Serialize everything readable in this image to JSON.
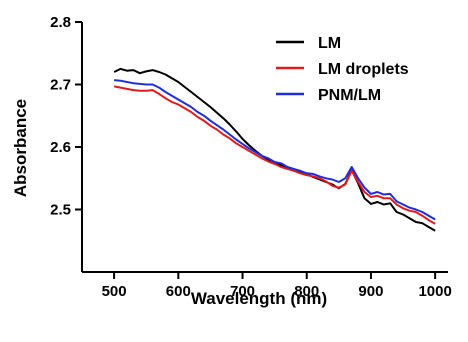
{
  "chart_data": {
    "type": "line",
    "xlabel": "Wavelength (nm)",
    "ylabel": "Absorbance",
    "xlim": [
      450,
      1020
    ],
    "ylim": [
      2.4,
      2.8
    ],
    "x_ticks": [
      500,
      600,
      700,
      800,
      900,
      1000
    ],
    "x_tick_labels": [
      "500",
      "600",
      "700",
      "800",
      "900",
      "1000"
    ],
    "y_ticks": [
      2.5,
      2.6,
      2.7,
      2.8
    ],
    "y_tick_labels": [
      "2.5",
      "2.6",
      "2.7",
      "2.8"
    ],
    "grid": false,
    "legend_position": "top-right",
    "series": [
      {
        "name": "LM",
        "color": "#000000",
        "x": [
          500,
          510,
          520,
          530,
          540,
          550,
          560,
          570,
          580,
          590,
          600,
          610,
          620,
          630,
          640,
          650,
          660,
          670,
          680,
          690,
          700,
          710,
          720,
          730,
          740,
          750,
          760,
          770,
          780,
          790,
          800,
          810,
          820,
          830,
          840,
          850,
          860,
          870,
          880,
          890,
          900,
          910,
          920,
          930,
          940,
          950,
          960,
          970,
          980,
          990,
          1000
        ],
        "values": [
          2.72,
          2.725,
          2.722,
          2.723,
          2.718,
          2.721,
          2.723,
          2.72,
          2.716,
          2.71,
          2.704,
          2.696,
          2.688,
          2.68,
          2.672,
          2.664,
          2.655,
          2.646,
          2.636,
          2.625,
          2.613,
          2.603,
          2.594,
          2.586,
          2.58,
          2.576,
          2.571,
          2.566,
          2.562,
          2.56,
          2.557,
          2.552,
          2.548,
          2.544,
          2.54,
          2.534,
          2.541,
          2.563,
          2.542,
          2.518,
          2.509,
          2.512,
          2.508,
          2.51,
          2.496,
          2.492,
          2.486,
          2.48,
          2.478,
          2.472,
          2.466
        ]
      },
      {
        "name": "LM droplets",
        "color": "#e31a1c",
        "x": [
          500,
          510,
          520,
          530,
          540,
          550,
          560,
          570,
          580,
          590,
          600,
          610,
          620,
          630,
          640,
          650,
          660,
          670,
          680,
          690,
          700,
          710,
          720,
          730,
          740,
          750,
          760,
          770,
          780,
          790,
          800,
          810,
          820,
          830,
          840,
          850,
          860,
          870,
          880,
          890,
          900,
          910,
          920,
          930,
          940,
          950,
          960,
          970,
          980,
          990,
          1000
        ],
        "values": [
          2.697,
          2.695,
          2.693,
          2.691,
          2.69,
          2.69,
          2.691,
          2.685,
          2.678,
          2.672,
          2.668,
          2.662,
          2.656,
          2.648,
          2.642,
          2.634,
          2.628,
          2.62,
          2.614,
          2.606,
          2.6,
          2.594,
          2.588,
          2.582,
          2.577,
          2.573,
          2.568,
          2.565,
          2.562,
          2.558,
          2.555,
          2.553,
          2.55,
          2.545,
          2.538,
          2.535,
          2.54,
          2.562,
          2.544,
          2.528,
          2.52,
          2.522,
          2.518,
          2.518,
          2.508,
          2.502,
          2.498,
          2.496,
          2.49,
          2.483,
          2.477
        ]
      },
      {
        "name": "PNM/LM",
        "color": "#1f2fd6",
        "x": [
          500,
          510,
          520,
          530,
          540,
          550,
          560,
          570,
          580,
          590,
          600,
          610,
          620,
          630,
          640,
          650,
          660,
          670,
          680,
          690,
          700,
          710,
          720,
          730,
          740,
          750,
          760,
          770,
          780,
          790,
          800,
          810,
          820,
          830,
          840,
          850,
          860,
          870,
          880,
          890,
          900,
          910,
          920,
          930,
          940,
          950,
          960,
          970,
          980,
          990,
          1000
        ],
        "values": [
          2.707,
          2.706,
          2.704,
          2.702,
          2.701,
          2.7,
          2.7,
          2.695,
          2.688,
          2.682,
          2.676,
          2.67,
          2.664,
          2.656,
          2.65,
          2.642,
          2.635,
          2.628,
          2.62,
          2.612,
          2.605,
          2.598,
          2.592,
          2.586,
          2.582,
          2.576,
          2.574,
          2.568,
          2.565,
          2.562,
          2.558,
          2.557,
          2.553,
          2.55,
          2.548,
          2.544,
          2.55,
          2.568,
          2.55,
          2.535,
          2.525,
          2.528,
          2.524,
          2.525,
          2.513,
          2.508,
          2.503,
          2.5,
          2.496,
          2.49,
          2.484
        ]
      }
    ]
  }
}
